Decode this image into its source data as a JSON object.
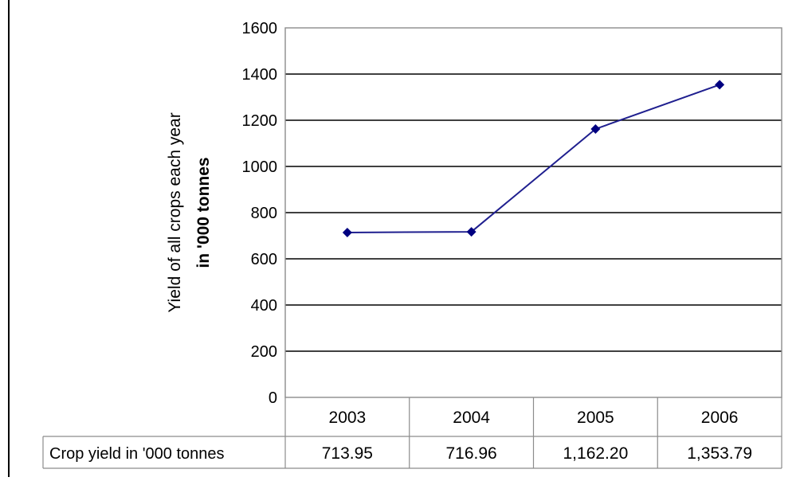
{
  "chart_data": {
    "type": "line",
    "categories": [
      "2003",
      "2004",
      "2005",
      "2006"
    ],
    "series": [
      {
        "name": "Crop yield in '000 tonnes",
        "values": [
          713.95,
          716.96,
          1162.2,
          1353.79
        ],
        "labels": [
          "713.95",
          "716.96",
          "1,162.20",
          "1,353.79"
        ]
      }
    ],
    "title": "",
    "xlabel": "",
    "ylabel": [
      "Yield of all crops each year",
      "in '000 tonnes"
    ],
    "ylim": [
      0,
      1600
    ],
    "yticks": [
      0,
      200,
      400,
      600,
      800,
      1000,
      1200,
      1400,
      1600
    ],
    "grid": true,
    "data_table": true,
    "colors": {
      "line": "#1f1f8f",
      "marker": "#000080",
      "grid": "#000000"
    }
  }
}
